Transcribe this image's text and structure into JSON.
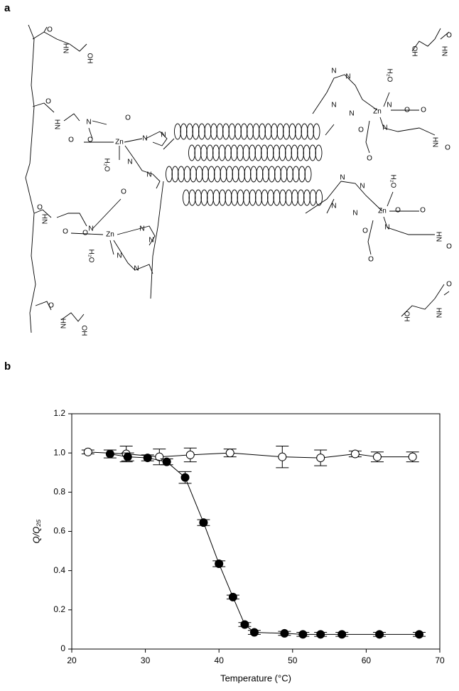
{
  "figure": {
    "panel_a_label": "a",
    "panel_b_label": "b",
    "structure_labels": [
      "O",
      "HN",
      "OH",
      "O",
      "HN",
      "N",
      "O",
      "O",
      "O",
      "Zn",
      "N",
      "N",
      "H₂O",
      "N",
      "N",
      "O",
      "HN",
      "O",
      "N",
      "O",
      "O",
      "Zn",
      "N",
      "N",
      "H₂O",
      "N",
      "N",
      "O",
      "HN",
      "OH",
      "O",
      "HN",
      "OH",
      "N",
      "N",
      "H₂O",
      "Zn",
      "N",
      "N",
      "N",
      "O",
      "O",
      "O",
      "N",
      "HN",
      "O",
      "O",
      "N",
      "N",
      "H₂O",
      "Zn",
      "N",
      "N",
      "O",
      "O",
      "O",
      "N",
      "HN",
      "O",
      "O",
      "O",
      "HN",
      "OH"
    ]
  },
  "chart_data": {
    "type": "line",
    "x_label": "Temperature (°C)",
    "y_label": "Q/Q₂₅",
    "xlim": [
      20,
      70
    ],
    "xticks": [
      20,
      30,
      40,
      50,
      60,
      70
    ],
    "ylim": [
      0,
      1.2
    ],
    "yticks": [
      0,
      0.2,
      0.4,
      0.6,
      0.8,
      {
        "value": 1,
        "label": "1.0"
      },
      1.2
    ],
    "series": [
      {
        "marker": "open",
        "color": "#000000",
        "x": [
          22.2,
          27.4,
          31.9,
          36.1,
          41.5,
          48.6,
          53.8,
          58.5,
          61.5,
          66.3
        ],
        "values": [
          1.005,
          0.995,
          0.98,
          0.99,
          1.0,
          0.98,
          0.975,
          0.995,
          0.98,
          0.98
        ],
        "errors": [
          0.01,
          0.04,
          0.04,
          0.035,
          0.02,
          0.055,
          0.04,
          0.015,
          0.025,
          0.025
        ]
      },
      {
        "marker": "filled",
        "color": "#000000",
        "x": [
          25.2,
          27.6,
          30.3,
          32.9,
          35.4,
          37.9,
          40,
          41.9,
          43.5,
          44.8,
          48.9,
          51.4,
          53.8,
          56.7,
          61.8,
          67.2
        ],
        "values": [
          0.995,
          0.98,
          0.975,
          0.955,
          0.875,
          0.645,
          0.435,
          0.265,
          0.125,
          0.085,
          0.08,
          0.075,
          0.075,
          0.075,
          0.075,
          0.075
        ],
        "errors": [
          0.02,
          0.02,
          0.015,
          0.015,
          0.03,
          0.015,
          0.015,
          0.01,
          0.01,
          0.01,
          0.01,
          0.01,
          0.01,
          0.01,
          0.01,
          0.01
        ]
      }
    ]
  }
}
